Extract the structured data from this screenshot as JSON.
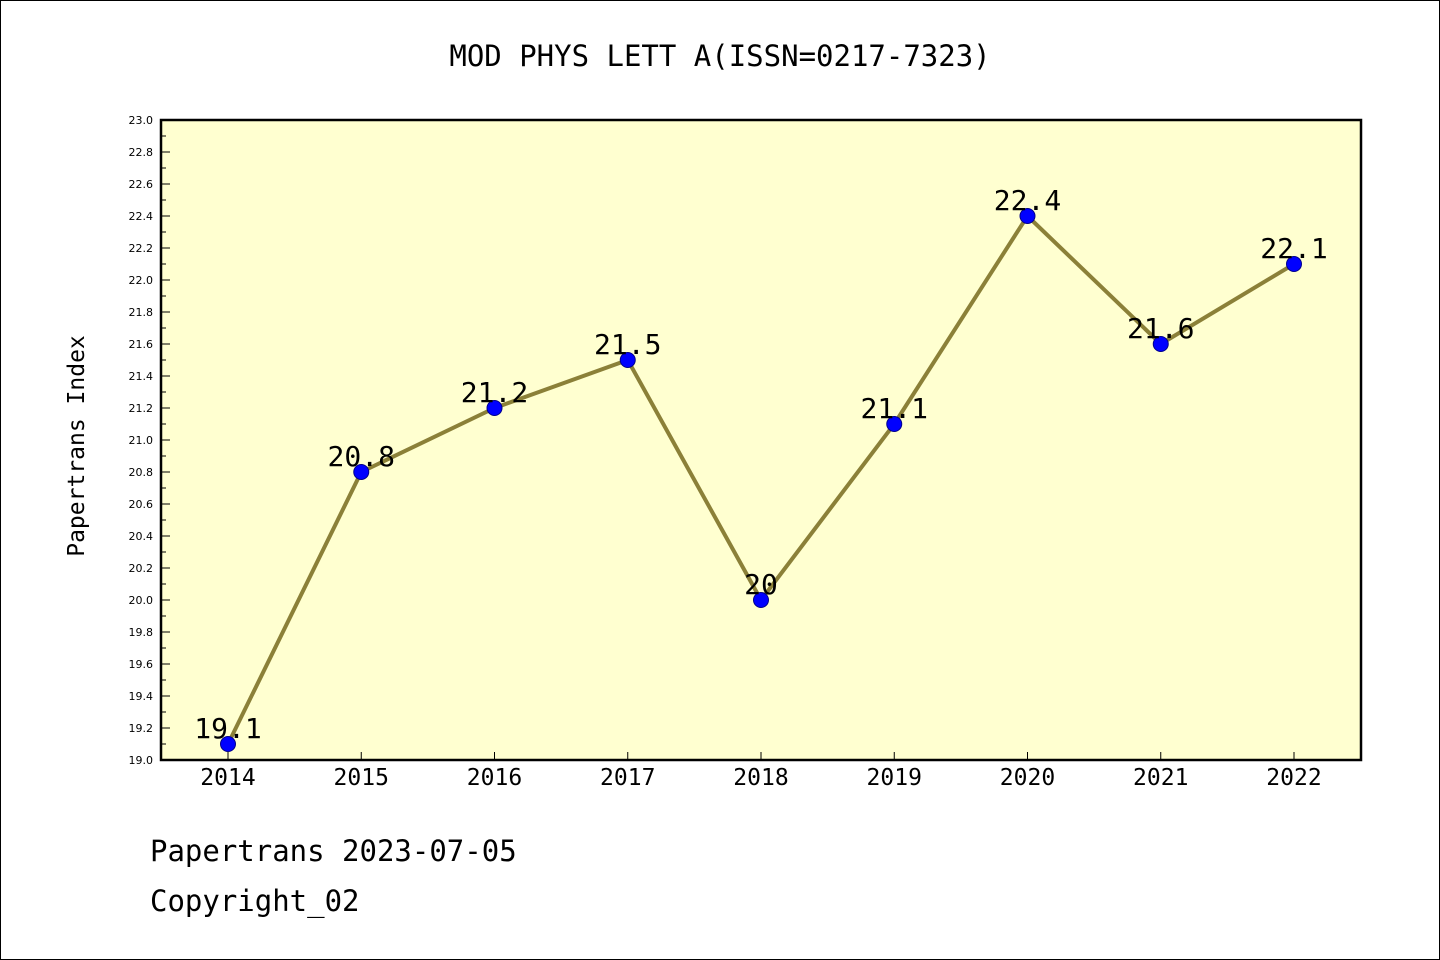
{
  "chart_data": {
    "type": "line",
    "title": "MOD PHYS LETT A(ISSN=0217-7323)",
    "xlabel": "",
    "ylabel": "Papertrans Index",
    "categories": [
      "2014",
      "2015",
      "2016",
      "2017",
      "2018",
      "2019",
      "2020",
      "2021",
      "2022"
    ],
    "series": [
      {
        "values": [
          19.1,
          20.8,
          21.2,
          21.5,
          20.0,
          21.1,
          22.4,
          21.6,
          22.1
        ],
        "point_labels": [
          "19.1",
          "20.8",
          "21.2",
          "21.5",
          "20",
          "21.1",
          "22.4",
          "21.6",
          "22.1"
        ]
      }
    ],
    "ylim": [
      19.0,
      23.0
    ],
    "yticks": [
      "19.0",
      "19.2",
      "19.4",
      "19.6",
      "19.8",
      "20.0",
      "20.2",
      "20.4",
      "20.6",
      "20.8",
      "21.0",
      "21.2",
      "21.4",
      "21.6",
      "21.8",
      "22.0",
      "22.2",
      "22.4",
      "22.6",
      "22.8",
      "23.0"
    ],
    "grid": false,
    "legend": "none",
    "colors": {
      "plot_background": "#ffffd0",
      "line": "#8b8038",
      "marker": "#0000ff",
      "marker_edge": "#00008b"
    }
  },
  "footer": {
    "line1": "Papertrans 2023-07-05",
    "line2": "Copyright_02"
  }
}
